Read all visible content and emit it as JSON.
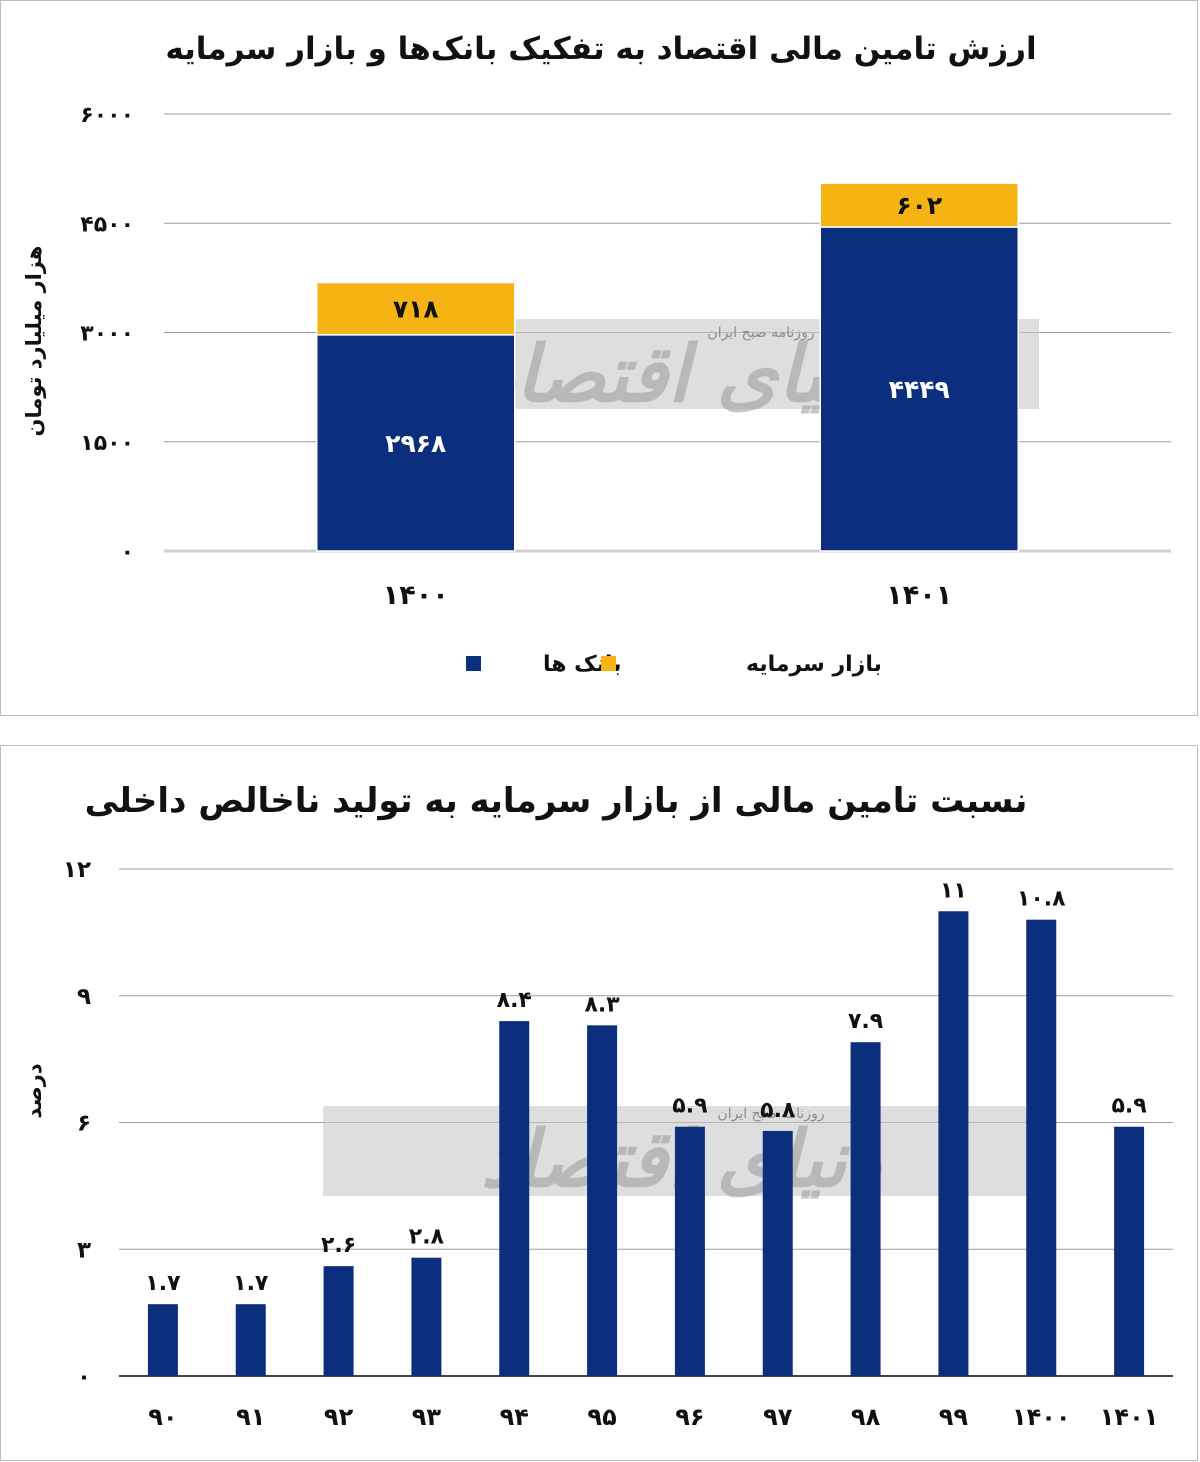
{
  "colors": {
    "bank": "#0c2f7d",
    "market": "#f5b414",
    "grid": "#9e9e9e",
    "axis": "#cfcfcf",
    "watermark": "#c8c8c8"
  },
  "chart_data": [
    {
      "type": "bar",
      "stacked": true,
      "title": "ارزش تامین مالی اقتصاد به تفکیک بانک‌ها و بازار سرمایه",
      "ylabel": "هزار میلیارد تومان",
      "xlabel": "",
      "categories": [
        "۱۴۰۰",
        "۱۴۰۱"
      ],
      "series": [
        {
          "name": "بانک ها",
          "values": [
            2968,
            4449
          ],
          "labels": [
            "۲۹۶۸",
            "۴۴۴۹"
          ],
          "color_key": "bank"
        },
        {
          "name": "بازار سرمایه",
          "values": [
            718,
            602
          ],
          "labels": [
            "۷۱۸",
            "۶۰۲"
          ],
          "color_key": "market"
        }
      ],
      "ylim": [
        0,
        6000
      ],
      "yticks": [
        0,
        1500,
        3000,
        4500,
        6000
      ],
      "ytick_labels": [
        "۰",
        "۱۵۰۰",
        "۳۰۰۰",
        "۴۵۰۰",
        "۶۰۰۰"
      ],
      "grid": true,
      "legend_position": "bottom"
    },
    {
      "type": "bar",
      "title": "نسبت تامین مالی از بازار سرمایه به تولید ناخالص داخلی",
      "ylabel": "درصد",
      "xlabel": "",
      "categories": [
        "۹۰",
        "۹۱",
        "۹۲",
        "۹۳",
        "۹۴",
        "۹۵",
        "۹۶",
        "۹۷",
        "۹۸",
        "۹۹",
        "۱۴۰۰",
        "۱۴۰۱"
      ],
      "values": [
        1.7,
        1.7,
        2.6,
        2.8,
        8.4,
        8.3,
        5.9,
        5.8,
        7.9,
        11,
        10.8,
        5.9
      ],
      "value_labels": [
        "۱.۷",
        "۱.۷",
        "۲.۶",
        "۲.۸",
        "۸.۴",
        "۸.۳",
        "۵.۹",
        "۵.۸",
        "۷.۹",
        "۱۱",
        "۱۰.۸",
        "۵.۹"
      ],
      "ylim": [
        0,
        12
      ],
      "yticks": [
        0,
        3,
        6,
        9,
        12
      ],
      "ytick_labels": [
        "۰",
        "۳",
        "۶",
        "۹",
        "۱۲"
      ],
      "grid": true,
      "legend_position": "none"
    }
  ],
  "watermark": {
    "main": "دنیای اقتصاد",
    "sub": "روزنامه صبح ایران"
  }
}
